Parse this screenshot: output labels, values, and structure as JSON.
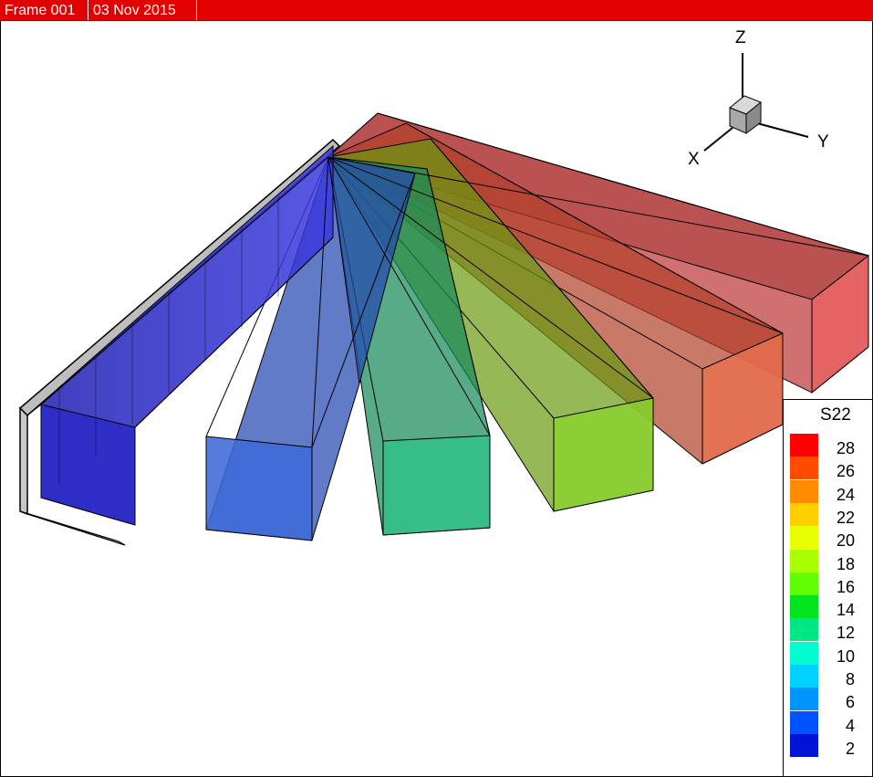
{
  "header": {
    "frame_label": "Frame 001",
    "date_label": "03 Nov 2015"
  },
  "axes_triad": {
    "x": "X",
    "y": "Y",
    "z": "Z"
  },
  "legend": {
    "title": "S22",
    "levels": [
      "28",
      "26",
      "24",
      "22",
      "20",
      "18",
      "16",
      "14",
      "12",
      "10",
      "8",
      "6",
      "4",
      "2"
    ]
  },
  "colors": {
    "header_bg": "#e30000",
    "colormap": [
      "#ff0000",
      "#ff4a00",
      "#ff8b00",
      "#ffcf00",
      "#e7ff00",
      "#a8ff00",
      "#60ff00",
      "#00e51d",
      "#00e783",
      "#00fccf",
      "#00d2ff",
      "#0094ff",
      "#0053ff",
      "#0014d6"
    ]
  },
  "boxes": [
    {
      "name": "beam-blue-dark",
      "color": "#2a2ac8"
    },
    {
      "name": "beam-blue",
      "color": "#2e5ad0"
    },
    {
      "name": "beam-green",
      "color": "#1fb47a"
    },
    {
      "name": "beam-lime",
      "color": "#7cc626"
    },
    {
      "name": "beam-orange",
      "color": "#e4643a"
    },
    {
      "name": "beam-red",
      "color": "#e05050"
    }
  ]
}
